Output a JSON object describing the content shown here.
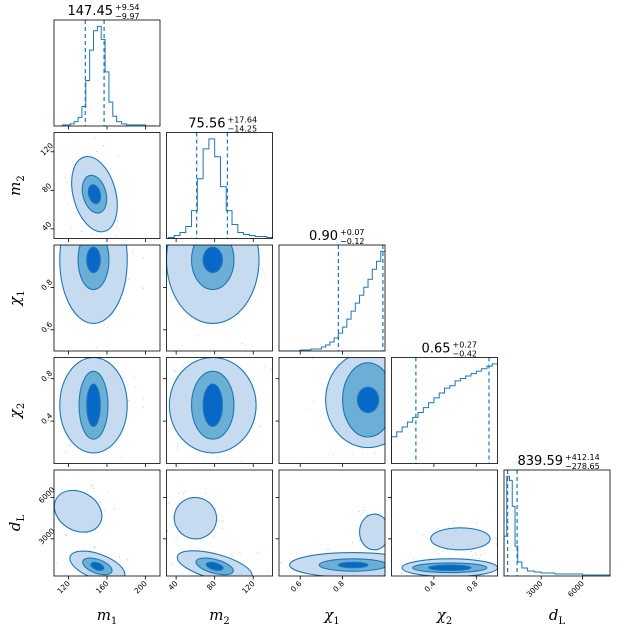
{
  "chart_data": {
    "type": "corner",
    "colors": {
      "primary": "#1f77b4",
      "level1": "#c6dbef",
      "level2": "#6baed6",
      "level3": "#0868c8"
    },
    "parameters": [
      {
        "key": "m1",
        "base": "m",
        "sub": "1",
        "range": [
          105,
          215
        ],
        "ticks": [
          {
            "v": 120,
            "label": "120"
          },
          {
            "v": 160,
            "label": "160"
          },
          {
            "v": 200,
            "label": "200"
          }
        ],
        "median": 147.45,
        "plus": "+9.54",
        "minus": "−9.97",
        "median_label": "147.45",
        "q_lo": 137.48,
        "q_hi": 156.99
      },
      {
        "key": "m2",
        "base": "m",
        "sub": "2",
        "range": [
          30,
          140
        ],
        "ticks": [
          {
            "v": 40,
            "label": "40"
          },
          {
            "v": 80,
            "label": "80"
          },
          {
            "v": 120,
            "label": "120"
          }
        ],
        "median": 75.56,
        "plus": "+17.64",
        "minus": "−14.25",
        "median_label": "75.56",
        "q_lo": 61.31,
        "q_hi": 93.2
      },
      {
        "key": "chi1",
        "base": "χ",
        "sub": "1",
        "range": [
          0.5,
          1.0
        ],
        "ticks": [
          {
            "v": 0.6,
            "label": "0.6"
          },
          {
            "v": 0.8,
            "label": "0.8"
          }
        ],
        "median": 0.9,
        "plus": "+0.07",
        "minus": "−0.12",
        "median_label": "0.90",
        "q_lo": 0.78,
        "q_hi": 0.99
      },
      {
        "key": "chi2",
        "base": "χ",
        "sub": "2",
        "range": [
          0.0,
          1.0
        ],
        "ticks": [
          {
            "v": 0.4,
            "label": "0.4"
          },
          {
            "v": 0.8,
            "label": "0.8"
          }
        ],
        "median": 0.65,
        "plus": "+0.27",
        "minus": "−0.42",
        "median_label": "0.65",
        "q_lo": 0.23,
        "q_hi": 0.92
      },
      {
        "key": "dL",
        "base": "d",
        "sub": "L",
        "range": [
          300,
          8000
        ],
        "ticks": [
          {
            "v": 3000,
            "label": "3000"
          },
          {
            "v": 6000,
            "label": "6000"
          }
        ],
        "median": 839.59,
        "plus": "+412.14",
        "minus": "−278.65",
        "median_label": "839.59",
        "q_lo": 560.94,
        "q_hi": 1251.73
      }
    ],
    "histograms": {
      "m1": {
        "bins": [
          110,
          114,
          118,
          122,
          126,
          130,
          134,
          138,
          142,
          146,
          150,
          154,
          158,
          162,
          166,
          170,
          175,
          180,
          190,
          200,
          210
        ],
        "counts": [
          0,
          1,
          1,
          2,
          4,
          8,
          18,
          42,
          70,
          88,
          92,
          80,
          50,
          22,
          9,
          4,
          2,
          1,
          1,
          0
        ]
      },
      "m2": {
        "bins": [
          32,
          38,
          44,
          50,
          56,
          62,
          68,
          74,
          80,
          86,
          92,
          98,
          104,
          110,
          116,
          122,
          128,
          134,
          140
        ],
        "counts": [
          1,
          3,
          6,
          12,
          28,
          60,
          90,
          100,
          82,
          52,
          28,
          14,
          6,
          4,
          3,
          2,
          2,
          1
        ]
      },
      "chi1": {
        "bins": [
          0.5,
          0.55,
          0.6,
          0.65,
          0.7,
          0.72,
          0.74,
          0.76,
          0.78,
          0.8,
          0.82,
          0.84,
          0.86,
          0.88,
          0.9,
          0.92,
          0.94,
          0.96,
          0.98,
          1.0
        ],
        "counts": [
          0,
          0,
          1,
          2,
          4,
          6,
          9,
          13,
          18,
          24,
          32,
          40,
          48,
          56,
          64,
          72,
          82,
          90,
          100
        ]
      },
      "chi2": {
        "bins": [
          0.0,
          0.05,
          0.1,
          0.15,
          0.2,
          0.25,
          0.3,
          0.35,
          0.4,
          0.45,
          0.5,
          0.55,
          0.6,
          0.65,
          0.7,
          0.75,
          0.8,
          0.85,
          0.9,
          0.95,
          1.0
        ],
        "counts": [
          22,
          26,
          30,
          34,
          38,
          42,
          46,
          50,
          54,
          58,
          62,
          64,
          68,
          70,
          72,
          74,
          76,
          78,
          80,
          82
        ]
      },
      "dL": {
        "bins": [
          300,
          500,
          700,
          900,
          1100,
          1300,
          1600,
          2000,
          2500,
          3000,
          4000,
          5000,
          6000,
          7000,
          8000
        ],
        "counts": [
          40,
          100,
          96,
          70,
          30,
          14,
          8,
          5,
          4,
          3,
          2,
          2,
          1,
          1
        ]
      }
    },
    "pairs": [
      {
        "x": "m1",
        "y": "m2",
        "blobs": [
          {
            "cx": 147,
            "cy": 76,
            "rx": [
              22,
              12,
              6
            ],
            "ry": [
              40,
              20,
              10
            ],
            "rot": -15
          }
        ]
      },
      {
        "x": "m1",
        "y": "chi1",
        "blobs": [
          {
            "cx": 146,
            "cy": 0.93,
            "rx": [
              35,
              16,
              7
            ],
            "ry": [
              0.3,
              0.14,
              0.06
            ],
            "rot": 0
          }
        ]
      },
      {
        "x": "m2",
        "y": "chi1",
        "blobs": [
          {
            "cx": 78,
            "cy": 0.93,
            "rx": [
              48,
              22,
              10
            ],
            "ry": [
              0.3,
              0.14,
              0.06
            ],
            "rot": 0
          }
        ]
      },
      {
        "x": "m1",
        "y": "chi2",
        "blobs": [
          {
            "cx": 146,
            "cy": 0.55,
            "rx": [
              35,
              15,
              7
            ],
            "ry": [
              0.45,
              0.32,
              0.2
            ],
            "rot": 0
          }
        ]
      },
      {
        "x": "m2",
        "y": "chi2",
        "blobs": [
          {
            "cx": 78,
            "cy": 0.55,
            "rx": [
              45,
              22,
              10
            ],
            "ry": [
              0.45,
              0.32,
              0.2
            ],
            "rot": 0
          }
        ]
      },
      {
        "x": "chi1",
        "y": "chi2",
        "blobs": [
          {
            "cx": 0.92,
            "cy": 0.6,
            "rx": [
              0.2,
              0.12,
              0.05
            ],
            "ry": [
              0.45,
              0.35,
              0.12
            ],
            "rot": 0
          }
        ]
      },
      {
        "x": "m1",
        "y": "dL",
        "blobs": [
          {
            "cx": 150,
            "cy": 1000,
            "rx": [
              30,
              16,
              7
            ],
            "ry": [
              900,
              500,
              250
            ],
            "rot": 20
          },
          {
            "cx": 130,
            "cy": 5000,
            "rx": [
              26,
              0,
              0
            ],
            "ry": [
              1400,
              0,
              0
            ],
            "rot": 30
          }
        ]
      },
      {
        "x": "m2",
        "y": "dL",
        "blobs": [
          {
            "cx": 80,
            "cy": 1000,
            "rx": [
              40,
              20,
              9
            ],
            "ry": [
              900,
              500,
              250
            ],
            "rot": 15
          },
          {
            "cx": 60,
            "cy": 4500,
            "rx": [
              22,
              0,
              0
            ],
            "ry": [
              1500,
              0,
              0
            ],
            "rot": 20
          }
        ]
      },
      {
        "x": "chi1",
        "y": "dL",
        "blobs": [
          {
            "cx": 0.85,
            "cy": 1100,
            "rx": [
              0.3,
              0.16,
              0.07
            ],
            "ry": [
              900,
              450,
              200
            ],
            "rot": 0
          },
          {
            "cx": 0.95,
            "cy": 3500,
            "rx": [
              0.07,
              0,
              0
            ],
            "ry": [
              1300,
              0,
              0
            ],
            "rot": 0
          }
        ]
      },
      {
        "x": "chi2",
        "y": "dL",
        "blobs": [
          {
            "cx": 0.55,
            "cy": 900,
            "rx": [
              0.45,
              0.35,
              0.2
            ],
            "ry": [
              650,
              350,
              200
            ],
            "rot": 0
          },
          {
            "cx": 0.65,
            "cy": 3000,
            "rx": [
              0.28,
              0,
              0
            ],
            "ry": [
              800,
              0,
              0
            ],
            "rot": 0
          }
        ]
      }
    ]
  }
}
